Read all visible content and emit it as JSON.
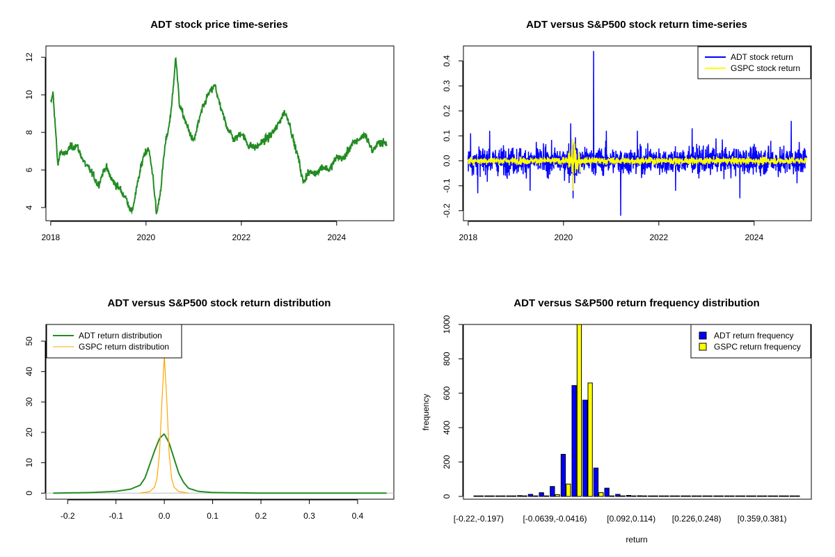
{
  "colors": {
    "green": "#228B22",
    "blue": "#0000FF",
    "yellow": "#FFFF00",
    "orange": "#FFA500"
  },
  "chart_data": [
    {
      "type": "line",
      "title": "ADT stock price time-series",
      "xlabel": "",
      "ylabel": "",
      "xlim": [
        2017.9,
        2025.2
      ],
      "ylim": [
        3.3,
        12.6
      ],
      "x_ticks": [
        2018,
        2020,
        2022,
        2024
      ],
      "x_tick_labels": [
        "2018",
        "2020",
        "2022",
        "2024"
      ],
      "y_ticks": [
        4,
        6,
        8,
        10,
        12
      ],
      "y_tick_labels": [
        "4",
        "6",
        "8",
        "10",
        "12"
      ],
      "series": [
        {
          "name": "ADT price",
          "color": "#228B22",
          "x": [
            2018.0,
            2018.05,
            2018.1,
            2018.15,
            2018.2,
            2018.3,
            2018.4,
            2018.55,
            2018.7,
            2018.85,
            2019.0,
            2019.15,
            2019.3,
            2019.45,
            2019.6,
            2019.7,
            2019.85,
            2019.95,
            2020.05,
            2020.15,
            2020.22,
            2020.3,
            2020.4,
            2020.5,
            2020.58,
            2020.62,
            2020.7,
            2020.85,
            2021.0,
            2021.15,
            2021.3,
            2021.45,
            2021.55,
            2021.7,
            2021.85,
            2022.0,
            2022.15,
            2022.3,
            2022.45,
            2022.6,
            2022.75,
            2022.9,
            2023.0,
            2023.1,
            2023.2,
            2023.3,
            2023.4,
            2023.55,
            2023.7,
            2023.85,
            2024.0,
            2024.15,
            2024.3,
            2024.45,
            2024.6,
            2024.75,
            2024.9,
            2025.05
          ],
          "y": [
            9.5,
            10.1,
            8.2,
            6.2,
            7.0,
            6.8,
            7.2,
            7.3,
            6.4,
            5.9,
            5.2,
            6.2,
            5.4,
            5.0,
            4.4,
            3.7,
            5.6,
            6.8,
            7.2,
            5.6,
            3.6,
            4.8,
            7.3,
            8.6,
            10.5,
            12.2,
            9.5,
            8.4,
            7.5,
            9.0,
            10.0,
            10.5,
            9.4,
            8.3,
            7.6,
            8.0,
            7.3,
            7.2,
            7.5,
            7.8,
            8.3,
            9.1,
            8.6,
            7.5,
            6.6,
            5.3,
            5.9,
            5.8,
            6.2,
            6.0,
            6.7,
            6.6,
            7.3,
            7.6,
            7.9,
            7.0,
            7.5,
            7.4
          ]
        }
      ]
    },
    {
      "type": "line",
      "title": "ADT versus S&P500 stock return time-series",
      "xlabel": "",
      "ylabel": "",
      "xlim": [
        2017.9,
        2025.2
      ],
      "ylim": [
        -0.24,
        0.46
      ],
      "x_ticks": [
        2018,
        2020,
        2022,
        2024
      ],
      "x_tick_labels": [
        "2018",
        "2020",
        "2022",
        "2024"
      ],
      "y_ticks": [
        -0.2,
        -0.1,
        0.0,
        0.1,
        0.2,
        0.3,
        0.4
      ],
      "y_tick_labels": [
        "-0.2",
        "-0.1",
        "0.0",
        "0.1",
        "0.2",
        "0.3",
        "0.4"
      ],
      "legend": {
        "position": "top-right",
        "entries": [
          "ADT stock return",
          "GSPC stock return"
        ]
      },
      "series": [
        {
          "name": "ADT stock return",
          "color": "#0000FF",
          "amplitude": 0.045,
          "spikes": {
            "x": [
              2018.05,
              2018.2,
              2018.45,
              2019.3,
              2020.15,
              2020.2,
              2020.63,
              2020.9,
              2021.2,
              2021.55,
              2022.35,
              2022.7,
              2023.2,
              2023.7,
              2024.35,
              2024.78,
              2024.9
            ],
            "y": [
              0.11,
              -0.13,
              0.12,
              -0.12,
              0.15,
              -0.15,
              0.44,
              0.12,
              -0.22,
              0.12,
              -0.12,
              0.13,
              0.09,
              -0.15,
              0.08,
              0.16,
              -0.09
            ]
          }
        },
        {
          "name": "GSPC stock return",
          "color": "#FFFF00",
          "amplitude": 0.012,
          "spikes": {
            "x": [
              2020.18,
              2020.2,
              2020.22,
              2020.25
            ],
            "y": [
              0.09,
              -0.12,
              0.08,
              -0.05
            ]
          }
        }
      ]
    },
    {
      "type": "line",
      "title": "ADT versus S&P500 stock return distribution",
      "xlabel": "",
      "ylabel": "",
      "xlim": [
        -0.245,
        0.475
      ],
      "ylim": [
        -2,
        55.5
      ],
      "x_ticks": [
        -0.2,
        -0.1,
        0.0,
        0.1,
        0.2,
        0.3,
        0.4
      ],
      "x_tick_labels": [
        "-0.2",
        "-0.1",
        "0.0",
        "0.1",
        "0.2",
        "0.3",
        "0.4"
      ],
      "y_ticks": [
        0,
        10,
        20,
        30,
        40,
        50
      ],
      "y_tick_labels": [
        "0",
        "10",
        "20",
        "30",
        "40",
        "50"
      ],
      "legend": {
        "position": "top-left",
        "entries": [
          "ADT return distribution",
          "GSPC return distribution"
        ]
      },
      "series": [
        {
          "name": "ADT return distribution",
          "color": "#228B22",
          "x": [
            -0.23,
            -0.15,
            -0.1,
            -0.07,
            -0.05,
            -0.04,
            -0.03,
            -0.02,
            -0.01,
            0.0,
            0.01,
            0.02,
            0.03,
            0.04,
            0.05,
            0.07,
            0.1,
            0.15,
            0.2,
            0.3,
            0.46
          ],
          "y": [
            0,
            0.2,
            0.6,
            1.3,
            2.6,
            5.0,
            9.5,
            14.0,
            18.0,
            19.5,
            16.5,
            11.5,
            6.5,
            3.5,
            1.6,
            0.6,
            0.2,
            0.1,
            0.0,
            0.0,
            0.0
          ]
        },
        {
          "name": "GSPC return distribution",
          "color": "#FFA500",
          "x": [
            -0.05,
            -0.03,
            -0.02,
            -0.015,
            -0.01,
            -0.005,
            0.0,
            0.005,
            0.01,
            0.015,
            0.02,
            0.03,
            0.05
          ],
          "y": [
            0,
            0.5,
            2.0,
            5.0,
            13.0,
            30.0,
            45.0,
            31.0,
            13.0,
            5.0,
            2.0,
            0.5,
            0
          ]
        }
      ]
    },
    {
      "type": "bar",
      "title": "ADT versus S&P500 return frequency distribution",
      "xlabel": "return",
      "ylabel": "frequency",
      "ylim": [
        0,
        1000
      ],
      "y_ticks": [
        0,
        200,
        400,
        600,
        800,
        1000
      ],
      "y_tick_labels": [
        "0",
        "200",
        "400",
        "600",
        "800",
        "1000"
      ],
      "x_tick_labels": [
        "[-0.22,-0.197)",
        "[-0.0639,-0.0416)",
        "[0.092,0.114)",
        "[0.226,0.248)",
        "[0.359,0.381)"
      ],
      "x_tick_bins": [
        0,
        7,
        14,
        20,
        26
      ],
      "bins": 30,
      "legend": {
        "position": "top-right",
        "entries": [
          "ADT return frequency",
          "GSPC return frequency"
        ]
      },
      "series": [
        {
          "name": "ADT return frequency",
          "color": "#0000FF",
          "values": [
            2,
            1,
            2,
            3,
            5,
            12,
            22,
            58,
            245,
            645,
            560,
            165,
            48,
            12,
            6,
            4,
            3,
            2,
            1,
            1,
            1,
            0,
            0,
            0,
            0,
            0,
            0,
            0,
            0,
            1
          ]
        },
        {
          "name": "GSPC return frequency",
          "color": "#FFFF00",
          "values": [
            0,
            0,
            0,
            0,
            0,
            0,
            0,
            10,
            72,
            1000,
            660,
            22,
            2,
            0,
            0,
            0,
            0,
            0,
            0,
            0,
            0,
            0,
            0,
            0,
            0,
            0,
            0,
            0,
            0,
            0
          ]
        }
      ]
    }
  ]
}
